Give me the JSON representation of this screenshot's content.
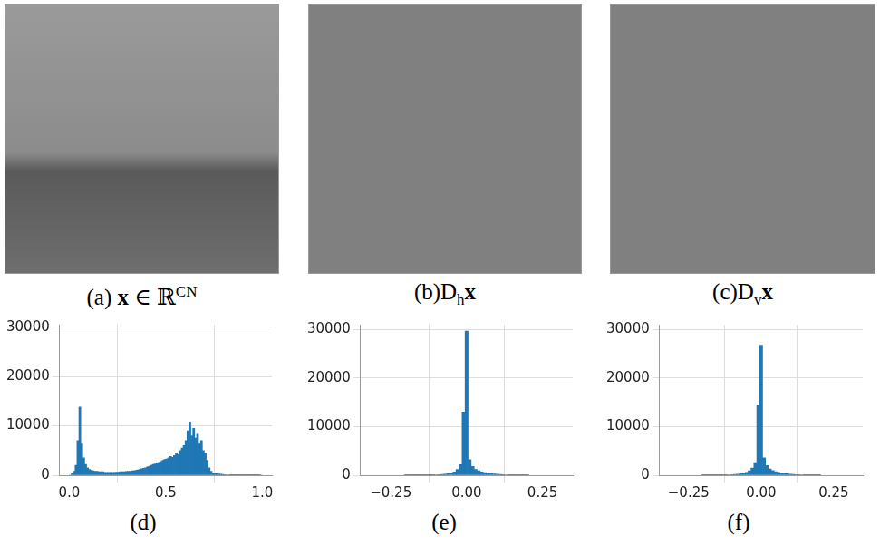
{
  "images": [
    {
      "caption": [
        {
          "text": "(a) "
        },
        {
          "text": "x",
          "style": "bold"
        },
        {
          "text": " ∈ ℝ"
        },
        {
          "text": "CN",
          "style": "sup"
        }
      ]
    },
    {
      "caption": [
        {
          "text": "(b)D"
        },
        {
          "text": "h",
          "style": "sub"
        },
        {
          "text": "x",
          "style": "bold"
        }
      ]
    },
    {
      "caption": [
        {
          "text": "(c)D"
        },
        {
          "text": "v",
          "style": "sub"
        },
        {
          "text": "x",
          "style": "bold"
        }
      ]
    }
  ],
  "chart_data": [
    {
      "type": "histogram",
      "caption": "(d)",
      "color": "#1f77b4",
      "grid": true,
      "bins": [
        0,
        0.01,
        0.02,
        0.03,
        0.04,
        0.05,
        0.06,
        0.07,
        0.08,
        0.09,
        0.1,
        0.11,
        0.12,
        0.13,
        0.14,
        0.15,
        0.16,
        0.17,
        0.18,
        0.19,
        0.2,
        0.21,
        0.22,
        0.23,
        0.24,
        0.25,
        0.26,
        0.27,
        0.28,
        0.29,
        0.3,
        0.31,
        0.32,
        0.33,
        0.34,
        0.35,
        0.36,
        0.37,
        0.38,
        0.39,
        0.4,
        0.41,
        0.42,
        0.43,
        0.44,
        0.45,
        0.46,
        0.47,
        0.48,
        0.49,
        0.5,
        0.51,
        0.52,
        0.53,
        0.54,
        0.55,
        0.56,
        0.57,
        0.58,
        0.59,
        0.6,
        0.61,
        0.62,
        0.63,
        0.64,
        0.65,
        0.66,
        0.67,
        0.68,
        0.69,
        0.7,
        0.71,
        0.72,
        0.73,
        0.74,
        0.75,
        0.76,
        0.77,
        0.78,
        0.79,
        0.8,
        0.81,
        0.82,
        0.83,
        0.84,
        0.85,
        0.86,
        0.87,
        0.88,
        0.89,
        0.9,
        0.91,
        0.92,
        0.93,
        0.94,
        0.95,
        0.96,
        0.97,
        0.98,
        0.99,
        1.0
      ],
      "values": [
        0,
        300,
        800,
        2000,
        7000,
        13800,
        6500,
        3500,
        2200,
        1500,
        1200,
        1000,
        900,
        800,
        800,
        700,
        700,
        700,
        600,
        600,
        600,
        600,
        600,
        600,
        650,
        650,
        700,
        700,
        700,
        750,
        800,
        800,
        900,
        900,
        1000,
        1100,
        1200,
        1300,
        1400,
        1500,
        1700,
        1800,
        2000,
        2200,
        2300,
        2500,
        2600,
        2800,
        3000,
        3200,
        3300,
        3500,
        3800,
        3600,
        4000,
        4500,
        4200,
        5000,
        5500,
        6000,
        7000,
        9000,
        10800,
        8000,
        9500,
        7500,
        8500,
        6500,
        7000,
        5000,
        4500,
        3000,
        1500,
        800,
        500,
        400,
        300,
        250,
        200,
        150,
        120,
        100,
        100,
        80,
        80,
        60,
        60,
        50,
        50,
        40,
        40,
        30,
        30,
        30,
        20,
        20,
        20,
        10,
        10,
        0
      ],
      "xlim": [
        -0.05,
        1.05
      ],
      "xticks": [
        {
          "value": 0,
          "label": "0.0"
        },
        {
          "value": 0.5,
          "label": "0.5"
        },
        {
          "value": 1,
          "label": "1.0"
        }
      ],
      "ylim": [
        0,
        30500
      ],
      "yticks": [
        0,
        10000,
        20000,
        30000
      ]
    },
    {
      "type": "histogram",
      "caption": "(e)",
      "color": "#1f77b4",
      "grid": true,
      "bins": [
        -0.205,
        -0.195,
        -0.185,
        -0.175,
        -0.165,
        -0.155,
        -0.145,
        -0.135,
        -0.125,
        -0.115,
        -0.105,
        -0.095,
        -0.085,
        -0.075,
        -0.065,
        -0.055,
        -0.045,
        -0.035,
        -0.025,
        -0.015,
        -0.005,
        0.005,
        0.015,
        0.025,
        0.035,
        0.045,
        0.055,
        0.065,
        0.075,
        0.085,
        0.095,
        0.105,
        0.115,
        0.125,
        0.135,
        0.145,
        0.155,
        0.165,
        0.175,
        0.185,
        0.195,
        0.205
      ],
      "values": [
        10,
        12,
        15,
        18,
        22,
        28,
        35,
        45,
        55,
        70,
        90,
        120,
        160,
        220,
        300,
        450,
        700,
        1200,
        2200,
        13000,
        29700,
        3200,
        1800,
        1200,
        900,
        700,
        550,
        420,
        320,
        250,
        200,
        160,
        130,
        100,
        80,
        60,
        50,
        40,
        30,
        25,
        20
      ],
      "xlim": [
        -0.35,
        0.35
      ],
      "xticks": [
        {
          "value": -0.25,
          "label": "−0.25"
        },
        {
          "value": 0,
          "label": "0.00"
        },
        {
          "value": 0.25,
          "label": "0.25"
        }
      ],
      "ylim": [
        0,
        31000
      ],
      "yticks": [
        0,
        10000,
        20000,
        30000
      ]
    },
    {
      "type": "histogram",
      "caption": "(f)",
      "color": "#1f77b4",
      "grid": true,
      "bins": [
        -0.205,
        -0.195,
        -0.185,
        -0.175,
        -0.165,
        -0.155,
        -0.145,
        -0.135,
        -0.125,
        -0.115,
        -0.105,
        -0.095,
        -0.085,
        -0.075,
        -0.065,
        -0.055,
        -0.045,
        -0.035,
        -0.025,
        -0.015,
        -0.005,
        0.005,
        0.015,
        0.025,
        0.035,
        0.045,
        0.055,
        0.065,
        0.075,
        0.085,
        0.095,
        0.105,
        0.115,
        0.125,
        0.135,
        0.145,
        0.155,
        0.165,
        0.175,
        0.185,
        0.195,
        0.205
      ],
      "values": [
        15,
        18,
        22,
        28,
        35,
        42,
        52,
        65,
        80,
        100,
        130,
        170,
        230,
        300,
        420,
        600,
        900,
        1500,
        2600,
        14500,
        26800,
        3600,
        2000,
        1300,
        950,
        750,
        600,
        470,
        370,
        290,
        230,
        180,
        140,
        110,
        90,
        70,
        55,
        45,
        35,
        28,
        22
      ],
      "xlim": [
        -0.35,
        0.35
      ],
      "xticks": [
        {
          "value": -0.25,
          "label": "−0.25"
        },
        {
          "value": 0,
          "label": "0.00"
        },
        {
          "value": 0.25,
          "label": "0.25"
        }
      ],
      "ylim": [
        0,
        31000
      ],
      "yticks": [
        0,
        10000,
        20000,
        30000
      ]
    }
  ]
}
